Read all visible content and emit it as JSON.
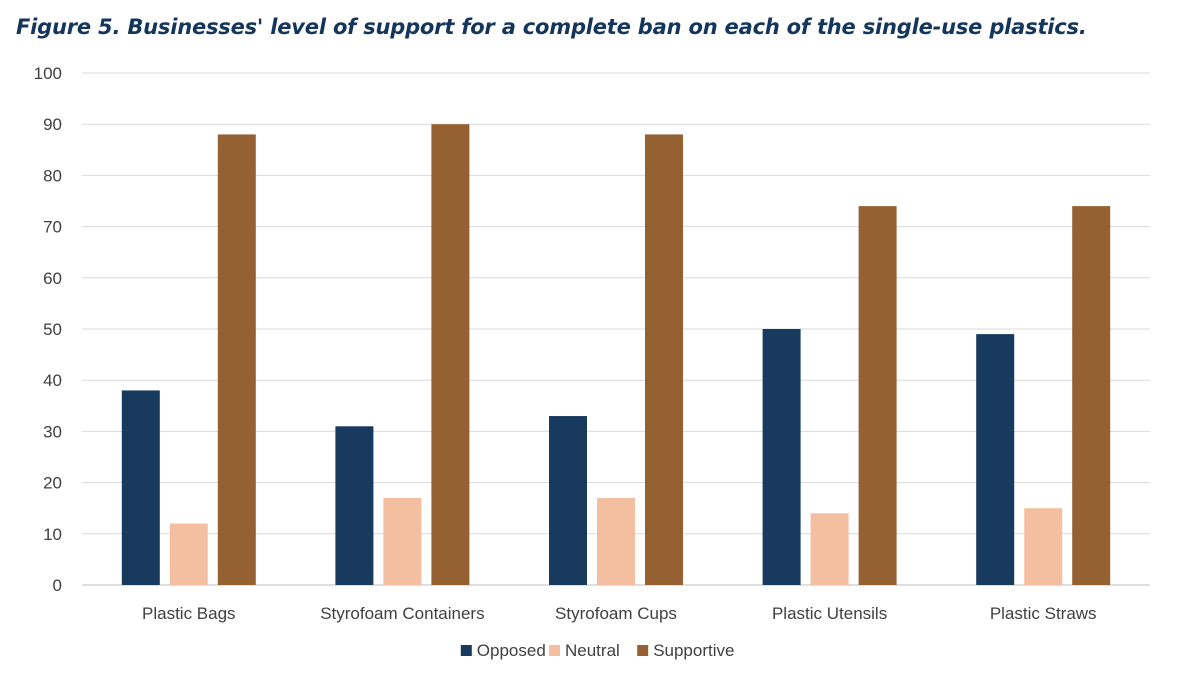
{
  "chart_data": {
    "type": "bar",
    "title": "Figure 5. Businesses' level of support for a complete ban on each of the single-use plastics.",
    "xlabel": "",
    "ylabel": "",
    "ylim": [
      0,
      100
    ],
    "yticks": [
      0,
      10,
      20,
      30,
      40,
      50,
      60,
      70,
      80,
      90,
      100
    ],
    "grid": true,
    "legend_position": "bottom",
    "categories": [
      "Plastic Bags",
      "Styrofoam Containers",
      "Styrofoam Cups",
      "Plastic Utensils",
      "Plastic Straws"
    ],
    "series": [
      {
        "name": "Opposed",
        "color": "#173a5e",
        "values": [
          38,
          31,
          33,
          50,
          49
        ]
      },
      {
        "name": "Neutral",
        "color": "#f4bfa0",
        "values": [
          12,
          17,
          17,
          14,
          15
        ]
      },
      {
        "name": "Supportive",
        "color": "#956132",
        "values": [
          88,
          90,
          88,
          74,
          74
        ]
      }
    ]
  }
}
